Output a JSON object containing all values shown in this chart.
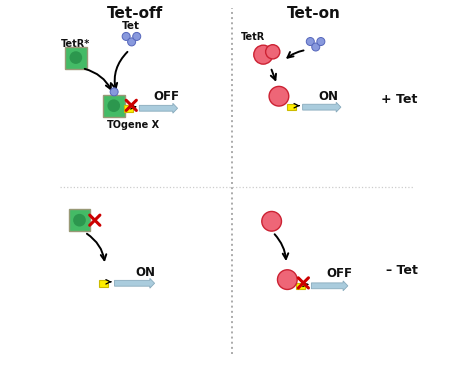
{
  "title_left": "Tet-off",
  "title_right": "Tet-on",
  "label_plus_tet": "+ Tet",
  "label_minus_tet": "– Tet",
  "color_green_fill": "#44bb66",
  "color_green_dark": "#228844",
  "color_blue_fill": "#8899dd",
  "color_blue_edge": "#5566bb",
  "color_red_fill": "#ee6677",
  "color_red_edge": "#cc2233",
  "color_yellow": "#ffee00",
  "color_yellow_edge": "#ccbb00",
  "color_arrow_body": "#aaccdd",
  "color_arrow_edge": "#88aabc",
  "color_red_x": "#cc0000",
  "color_black": "#111111",
  "color_divider": "#aaaaaa",
  "color_bg": "#ffffff",
  "figsize": [
    4.74,
    3.66
  ],
  "dpi": 100
}
